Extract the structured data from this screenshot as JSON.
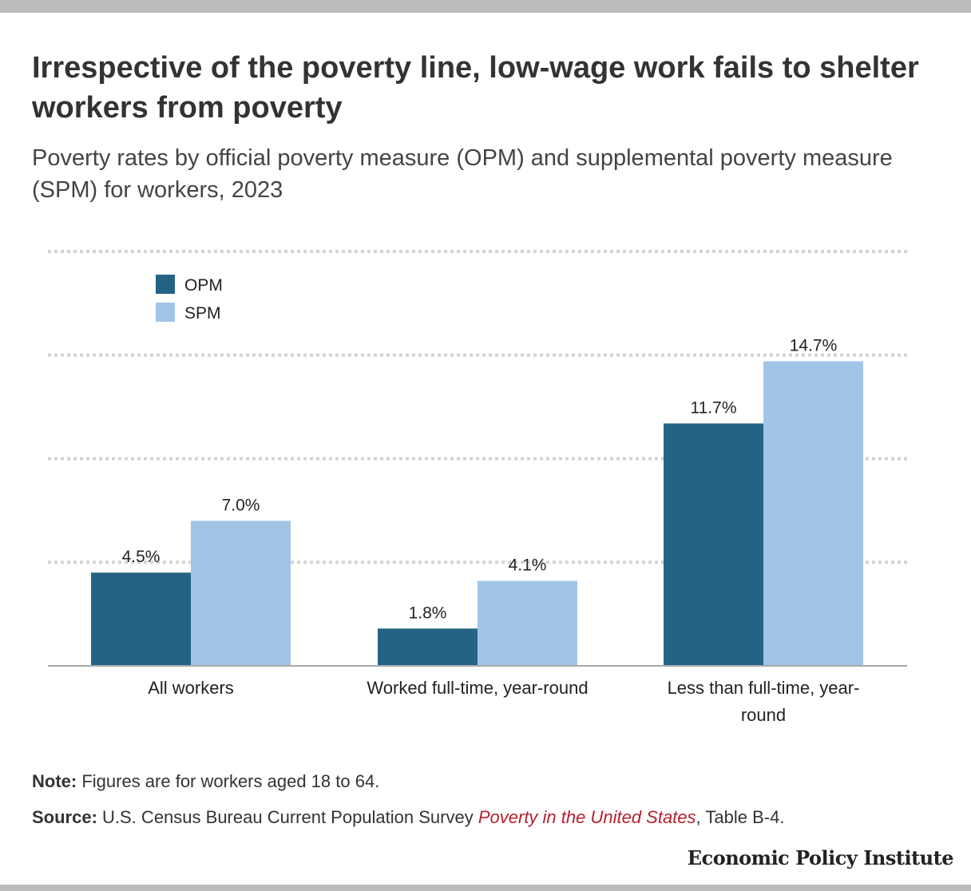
{
  "title": "Irrespective of the poverty line, low-wage work fails to shelter workers from poverty",
  "subtitle": "Poverty rates by official poverty measure (OPM) and supplemental poverty measure (SPM) for workers, 2023",
  "colors": {
    "opm": "#256386",
    "spm": "#a0c5e7",
    "grid": "#d3d3d3",
    "baseline": "#a8a8a8",
    "source_link": "#b5202e"
  },
  "chart_data": {
    "type": "bar",
    "categories": [
      "All workers",
      "Worked full-time, year-round",
      "Less than full-time, year-round"
    ],
    "series": [
      {
        "name": "OPM",
        "values": [
          4.5,
          1.8,
          11.7
        ],
        "labels": [
          "4.5%",
          "1.8%",
          "11.7%"
        ]
      },
      {
        "name": "SPM",
        "values": [
          7.0,
          4.1,
          14.7
        ],
        "labels": [
          "7.0%",
          "4.1%",
          "14.7%"
        ]
      }
    ],
    "ylim": [
      0,
      20
    ],
    "gridlines": [
      5,
      10,
      15,
      20
    ],
    "grid": true,
    "legend_position": "top-left",
    "xlabel": "",
    "ylabel": ""
  },
  "footer": {
    "note_label": "Note:",
    "note_text": " Figures are for workers aged 18 to 64.",
    "source_label": "Source:",
    "source_text": " U.S. Census Bureau Current Population Survey ",
    "source_link": "Poverty in the United States",
    "source_suffix": ", Table B-4."
  },
  "brand": "Economic Policy Institute"
}
